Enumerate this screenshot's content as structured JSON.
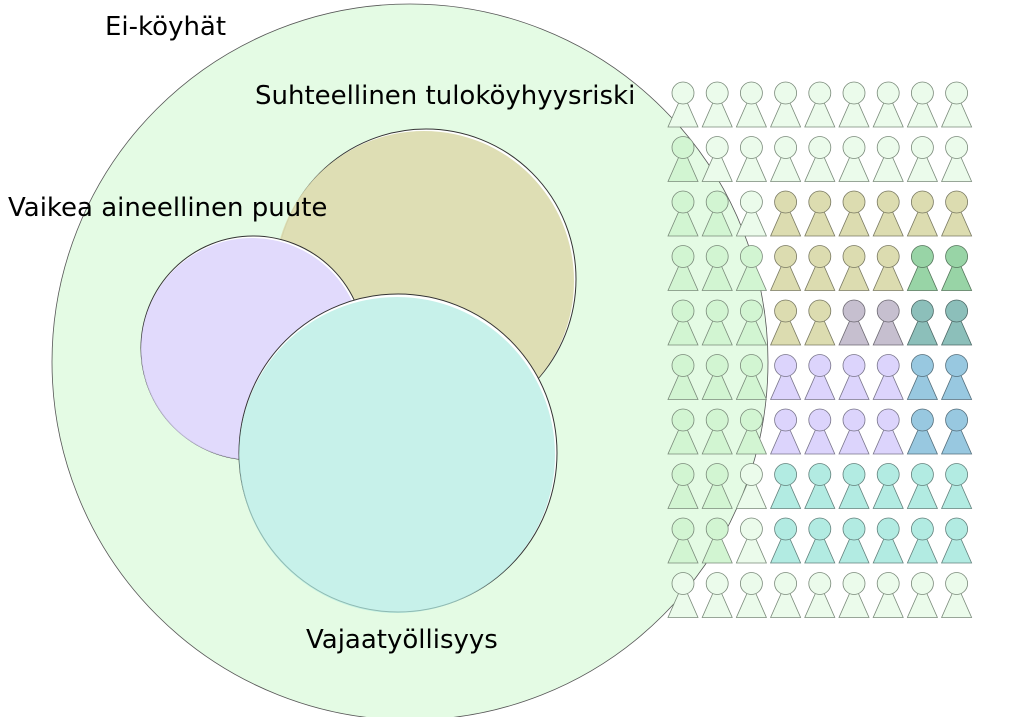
{
  "labels": {
    "not_poor": "Ei-köyhät",
    "income_poverty": "Suhteellinen tuloköyhyysriski",
    "material_deprivation": "Vaikea aineellinen puute",
    "low_work_intensity": "Vajaatyöllisyys"
  },
  "colors": {
    "not_poor": "#e4fbe4",
    "income_poverty": "#dcdcb0",
    "material_deprivation": "#dcd4fc",
    "low_work_intensity": "#b2ebe2",
    "income_and_material": "#c6bfcf",
    "income_and_work": "#98d4a6",
    "material_and_work": "#98c8e0",
    "all_three": "#8cbfba",
    "outline": "#555555"
  },
  "pictogram": {
    "rows": [
      [
        "not_poor",
        "not_poor",
        "not_poor",
        "not_poor",
        "not_poor",
        "not_poor",
        "not_poor",
        "not_poor",
        "not_poor"
      ],
      [
        "not_poor",
        "not_poor",
        "not_poor",
        "not_poor",
        "not_poor",
        "not_poor",
        "not_poor",
        "not_poor",
        "not_poor"
      ],
      [
        "not_poor",
        "not_poor",
        "not_poor",
        "income_poverty",
        "income_poverty",
        "income_poverty",
        "income_poverty",
        "income_poverty",
        "income_poverty"
      ],
      [
        "not_poor",
        "not_poor",
        "not_poor",
        "income_poverty",
        "income_poverty",
        "income_poverty",
        "income_poverty",
        "income_and_work",
        "income_and_work"
      ],
      [
        "not_poor",
        "not_poor",
        "not_poor",
        "income_poverty",
        "income_poverty",
        "income_and_material",
        "income_and_material",
        "all_three",
        "all_three"
      ],
      [
        "not_poor",
        "not_poor",
        "not_poor",
        "material_deprivation",
        "material_deprivation",
        "material_deprivation",
        "material_deprivation",
        "material_and_work",
        "material_and_work"
      ],
      [
        "not_poor",
        "not_poor",
        "not_poor",
        "material_deprivation",
        "material_deprivation",
        "material_deprivation",
        "material_deprivation",
        "material_and_work",
        "material_and_work"
      ],
      [
        "not_poor",
        "not_poor",
        "not_poor",
        "low_work_intensity",
        "low_work_intensity",
        "low_work_intensity",
        "low_work_intensity",
        "low_work_intensity",
        "low_work_intensity"
      ],
      [
        "not_poor",
        "not_poor",
        "not_poor",
        "low_work_intensity",
        "low_work_intensity",
        "low_work_intensity",
        "low_work_intensity",
        "low_work_intensity",
        "low_work_intensity"
      ],
      [
        "not_poor",
        "not_poor",
        "not_poor",
        "not_poor",
        "not_poor",
        "not_poor",
        "not_poor",
        "not_poor",
        "not_poor"
      ]
    ]
  }
}
